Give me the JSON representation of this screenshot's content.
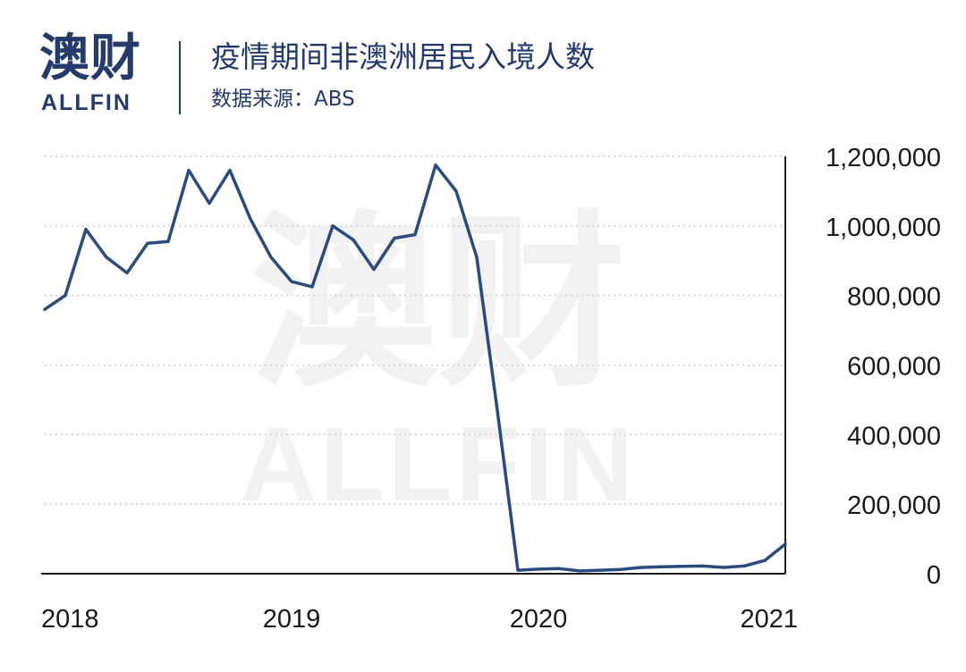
{
  "header": {
    "logo_cn": "澳财",
    "logo_en": "ALLFIN",
    "title": "疫情期间非澳洲居民入境人数",
    "subtitle": "数据来源：ABS"
  },
  "watermark": {
    "cn": "澳财",
    "en": "ALLFIN"
  },
  "colors": {
    "brand": "#243a6b",
    "line": "#2d4a7c",
    "grid": "#d0d0d0",
    "axis": "#1a1a1a",
    "watermark": "#f2f2f2"
  },
  "chart_data": {
    "type": "line",
    "title": "疫情期间非澳洲居民入境人数",
    "xlabel": "",
    "ylabel": "",
    "ylim": [
      0,
      1200000
    ],
    "yticks": [
      0,
      200000,
      400000,
      600000,
      800000,
      1000000,
      1200000
    ],
    "ytick_labels": [
      "0",
      "200,000",
      "400,000",
      "600,000",
      "800,000",
      "1,000,000",
      "1,200,000"
    ],
    "xlim": [
      0,
      36
    ],
    "xticks": [
      0,
      12,
      24,
      36
    ],
    "xtick_labels": [
      "2018",
      "2019",
      "2020",
      "2021"
    ],
    "grid": "horizontal-dotted",
    "y_axis_position": "right",
    "series": [
      {
        "x": [
          0,
          1,
          2,
          3,
          4,
          5,
          6,
          7,
          8,
          9,
          10,
          11,
          12,
          13,
          14,
          15,
          16,
          17,
          18,
          19,
          20,
          21,
          22,
          23,
          24,
          25,
          26,
          27,
          28,
          29,
          30,
          31,
          32,
          33,
          34,
          35,
          36
        ],
        "values": [
          760000,
          800000,
          990000,
          910000,
          865000,
          950000,
          955000,
          1160000,
          1065000,
          1160000,
          1020000,
          910000,
          840000,
          825000,
          1000000,
          960000,
          875000,
          965000,
          975000,
          1175000,
          1100000,
          910000,
          470000,
          10000,
          13000,
          15000,
          8000,
          10000,
          12000,
          18000,
          20000,
          21000,
          22000,
          18000,
          22000,
          38000,
          85000
        ]
      }
    ]
  }
}
